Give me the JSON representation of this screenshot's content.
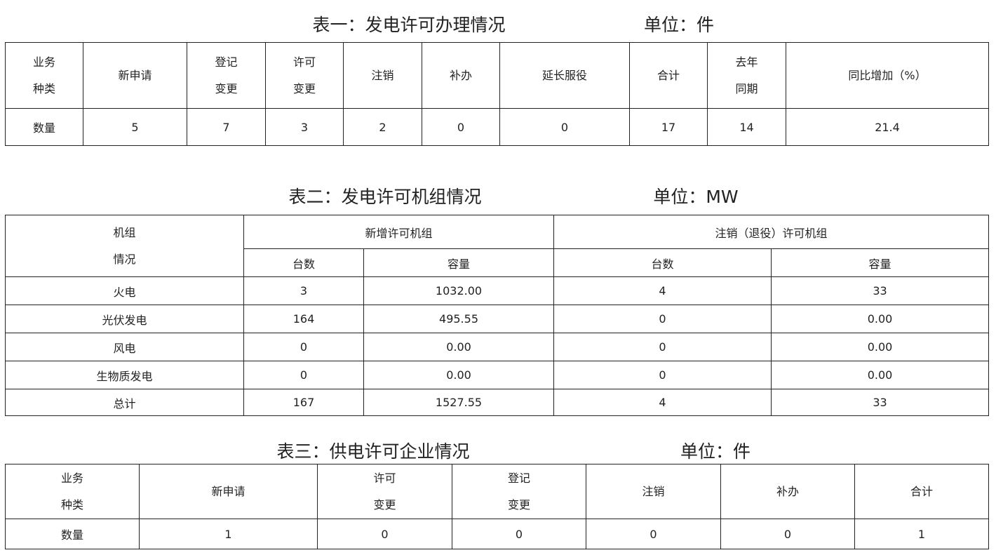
{
  "table1": {
    "title": "表一：发电许可办理情况",
    "unit": "单位：件",
    "headers": [
      [
        "业务",
        "种类"
      ],
      [
        "新申请"
      ],
      [
        "登记",
        "变更"
      ],
      [
        "许可",
        "变更"
      ],
      [
        "注销"
      ],
      [
        "补办"
      ],
      [
        "延长服役"
      ],
      [
        "合计"
      ],
      [
        "去年",
        "同期"
      ],
      [
        "同比增加（%）"
      ]
    ],
    "row": [
      "数量",
      "5",
      "7",
      "3",
      "2",
      "0",
      "0",
      "17",
      "14",
      "21.4"
    ]
  },
  "table2": {
    "title": "表二：发电许可机组情况",
    "unit": "单位：MW",
    "corner": [
      "机组",
      "情况"
    ],
    "group_new": "新增许可机组",
    "group_cancel": "注销（退役）许可机组",
    "sub": [
      "台数",
      "容量",
      "台数",
      "容量"
    ],
    "rows": [
      [
        "火电",
        "3",
        "1032.00",
        "4",
        "33"
      ],
      [
        "光伏发电",
        "164",
        "495.55",
        "0",
        "0.00"
      ],
      [
        "风电",
        "0",
        "0.00",
        "0",
        "0.00"
      ],
      [
        "生物质发电",
        "0",
        "0.00",
        "0",
        "0.00"
      ],
      [
        "总计",
        "167",
        "1527.55",
        "4",
        "33"
      ]
    ]
  },
  "table3": {
    "title": "表三：供电许可企业情况",
    "unit": "单位：件",
    "headers": [
      [
        "业务",
        "种类"
      ],
      [
        "新申请"
      ],
      [
        "许可",
        "变更"
      ],
      [
        "登记",
        "变更"
      ],
      [
        "注销"
      ],
      [
        "补办"
      ],
      [
        "合计"
      ]
    ],
    "row": [
      "数量",
      "1",
      "0",
      "0",
      "0",
      "0",
      "1"
    ]
  }
}
